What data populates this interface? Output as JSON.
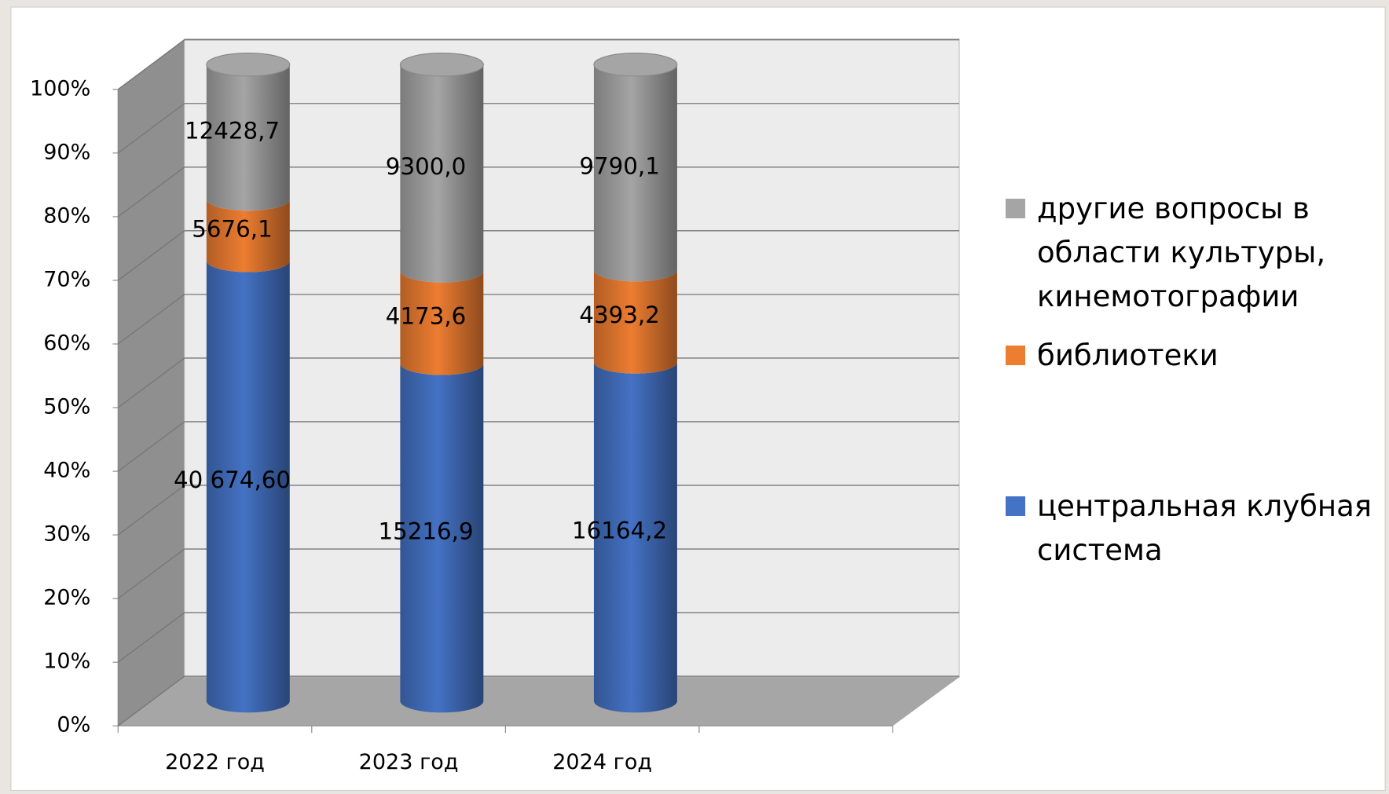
{
  "chart_data": {
    "type": "stacked_percent_cylinder",
    "categories": [
      "2022 год",
      "2023 год",
      "2024 год",
      null
    ],
    "series": [
      {
        "name": "центральная клубная система",
        "color": "#4472c4",
        "values": [
          40674.6,
          15216.9,
          16164.2,
          null
        ],
        "value_labels": [
          "40 674,60",
          "15216,9",
          "16164,2",
          null
        ]
      },
      {
        "name": "библиотеки",
        "color": "#ed7d31",
        "values": [
          5676.1,
          4173.6,
          4393.2,
          null
        ],
        "value_labels": [
          "5676,1",
          "4173,6",
          "4393,2",
          null
        ]
      },
      {
        "name": "другие вопросы в области культуры, кинемотографии",
        "color": "#a5a5a5",
        "values": [
          12428.7,
          9300.0,
          9790.1,
          null
        ],
        "value_labels": [
          "12428,7",
          "9300,0",
          "9790,1",
          null
        ]
      }
    ],
    "ylim": [
      0,
      100
    ],
    "yticks": [
      {
        "value": 0,
        "label": "0%"
      },
      {
        "value": 10,
        "label": "10%"
      },
      {
        "value": 20,
        "label": "20%"
      },
      {
        "value": 30,
        "label": "30%"
      },
      {
        "value": 40,
        "label": "40%"
      },
      {
        "value": 50,
        "label": "50%"
      },
      {
        "value": 60,
        "label": "60%"
      },
      {
        "value": 70,
        "label": "70%"
      },
      {
        "value": 80,
        "label": "80%"
      },
      {
        "value": 90,
        "label": "90%"
      },
      {
        "value": 100,
        "label": "100%"
      }
    ],
    "grid": true,
    "legend": "right"
  }
}
